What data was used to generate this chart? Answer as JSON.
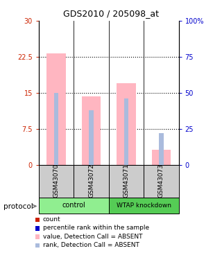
{
  "title": "GDS2010 / 205098_at",
  "samples": [
    "GSM43070",
    "GSM43072",
    "GSM43071",
    "GSM43073"
  ],
  "group_colors": [
    "#90EE90",
    "#55CC55"
  ],
  "bar_color_absent": "#FFB6C1",
  "rank_color_absent": "#AABBDD",
  "bar_values": [
    23.2,
    14.3,
    17.0,
    3.2
  ],
  "rank_values_pct": [
    50.0,
    38.0,
    46.0,
    22.0
  ],
  "ylim_left": [
    0,
    30
  ],
  "ylim_right": [
    0,
    100
  ],
  "left_ticks": [
    0,
    7.5,
    15,
    22.5,
    30
  ],
  "right_ticks": [
    0,
    25,
    50,
    75,
    100
  ],
  "left_tick_labels": [
    "0",
    "7.5",
    "15",
    "22.5",
    "30"
  ],
  "right_tick_labels": [
    "0",
    "25",
    "50",
    "75",
    "100%"
  ],
  "left_color": "#CC2200",
  "right_color": "#0000CC",
  "legend_items": [
    {
      "label": "count",
      "color": "#CC2200"
    },
    {
      "label": "percentile rank within the sample",
      "color": "#0000CC"
    },
    {
      "label": "value, Detection Call = ABSENT",
      "color": "#FFB6C1"
    },
    {
      "label": "rank, Detection Call = ABSENT",
      "color": "#AABBDD"
    }
  ],
  "bg_color_sample_labels": "#CCCCCC",
  "bar_width": 0.55,
  "rank_bar_width": 0.13
}
